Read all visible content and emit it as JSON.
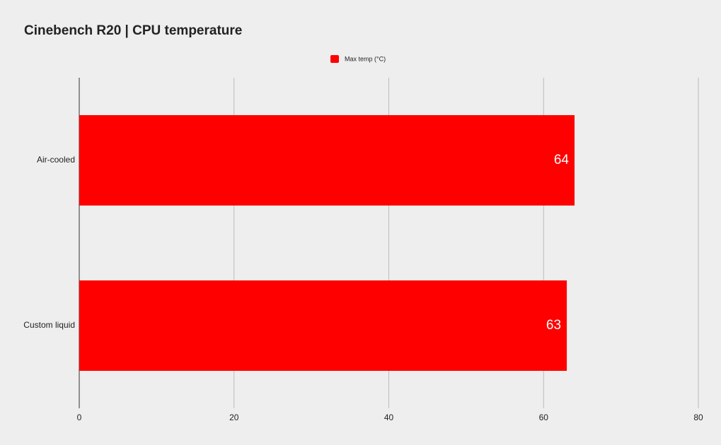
{
  "chart_data": {
    "type": "hbar",
    "title": "Cinebench R20 | CPU temperature",
    "categories": [
      "Air-cooled",
      "Custom liquid"
    ],
    "series": [
      {
        "name": "Max temp (°C)",
        "color": "#ff0000",
        "values": [
          64,
          63
        ]
      }
    ],
    "xlim": [
      0,
      80
    ],
    "xticks": [
      0,
      20,
      40,
      60,
      80
    ],
    "grid": true,
    "legend": "top"
  }
}
